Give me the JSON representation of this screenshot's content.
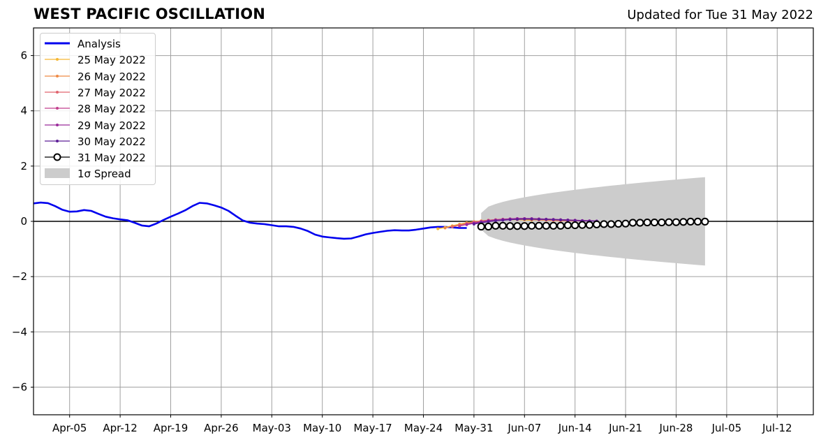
{
  "title": "WEST PACIFIC OSCILLATION",
  "subtitle": "Updated for Tue 31 May 2022",
  "chart_data": {
    "type": "line",
    "x_start": "2022-03-31",
    "x_end": "2022-07-17",
    "ylim": [
      -7,
      7
    ],
    "yticks": [
      -6,
      -4,
      -2,
      0,
      2,
      4,
      6
    ],
    "ytick_labels": [
      "−6",
      "−4",
      "−2",
      "0",
      "2",
      "4",
      "6"
    ],
    "xticks": [
      "2022-04-05",
      "2022-04-12",
      "2022-04-19",
      "2022-04-26",
      "2022-05-03",
      "2022-05-10",
      "2022-05-17",
      "2022-05-24",
      "2022-05-31",
      "2022-06-07",
      "2022-06-14",
      "2022-06-21",
      "2022-06-28",
      "2022-07-05",
      "2022-07-12"
    ],
    "xtick_labels": [
      "Apr-05",
      "Apr-12",
      "Apr-19",
      "Apr-26",
      "May-03",
      "May-10",
      "May-17",
      "May-24",
      "May-31",
      "Jun-07",
      "Jun-14",
      "Jun-21",
      "Jun-28",
      "Jul-05",
      "Jul-12"
    ],
    "grid": true,
    "zero_line": true,
    "legend_position": "upper-left",
    "series": [
      {
        "name": "Analysis",
        "color": "#0000ee",
        "style": "line",
        "x_start": "2022-03-31",
        "values": [
          0.65,
          0.68,
          0.66,
          0.55,
          0.42,
          0.35,
          0.36,
          0.41,
          0.38,
          0.27,
          0.17,
          0.11,
          0.07,
          0.04,
          -0.05,
          -0.15,
          -0.18,
          -0.08,
          0.05,
          0.17,
          0.28,
          0.4,
          0.55,
          0.67,
          0.65,
          0.58,
          0.5,
          0.38,
          0.2,
          0.03,
          -0.05,
          -0.08,
          -0.1,
          -0.14,
          -0.18,
          -0.18,
          -0.2,
          -0.26,
          -0.35,
          -0.48,
          -0.55,
          -0.58,
          -0.61,
          -0.63,
          -0.62,
          -0.55,
          -0.47,
          -0.42,
          -0.38,
          -0.34,
          -0.32,
          -0.33,
          -0.33,
          -0.3,
          -0.26,
          -0.22,
          -0.2,
          -0.2,
          -0.22,
          -0.24,
          -0.24
        ]
      },
      {
        "name": "25 May 2022",
        "color": "#f5b733",
        "style": "dots",
        "x_start": "2022-05-26",
        "values": [
          -0.27,
          -0.22,
          -0.16,
          -0.1,
          -0.05,
          -0.01,
          0.02,
          0.04,
          0.05,
          0.06,
          0.06,
          0.06,
          0.05,
          0.04
        ]
      },
      {
        "name": "26 May 2022",
        "color": "#ef8a44",
        "style": "dots",
        "x_start": "2022-05-27",
        "values": [
          -0.24,
          -0.18,
          -0.12,
          -0.07,
          -0.02,
          0.01,
          0.04,
          0.06,
          0.07,
          0.08,
          0.08,
          0.07,
          0.06,
          0.05,
          0.04,
          0.03,
          0.02,
          0.02,
          0.01
        ]
      },
      {
        "name": "27 May 2022",
        "color": "#e0646e",
        "style": "dots",
        "x_start": "2022-05-28",
        "values": [
          -0.2,
          -0.14,
          -0.08,
          -0.03,
          0.01,
          0.04,
          0.06,
          0.08,
          0.09,
          0.09,
          0.09,
          0.08,
          0.07,
          0.06,
          0.05,
          0.04,
          0.03,
          0.02,
          0.01,
          0.01
        ]
      },
      {
        "name": "28 May 2022",
        "color": "#c23f8d",
        "style": "dots",
        "x_start": "2022-05-29",
        "values": [
          -0.17,
          -0.11,
          -0.05,
          -0.01,
          0.03,
          0.05,
          0.07,
          0.09,
          0.1,
          0.1,
          0.09,
          0.09,
          0.08,
          0.07,
          0.06,
          0.05,
          0.04,
          0.03,
          0.02,
          0.01
        ]
      },
      {
        "name": "29 May 2022",
        "color": "#9a2a9a",
        "style": "dots",
        "x_start": "2022-05-30",
        "values": [
          -0.12,
          -0.07,
          -0.02,
          0.02,
          0.05,
          0.07,
          0.09,
          0.1,
          0.1,
          0.1,
          0.09,
          0.08,
          0.07,
          0.06,
          0.05,
          0.04,
          0.03,
          0.02,
          0.01
        ]
      },
      {
        "name": "30 May 2022",
        "color": "#5c1e96",
        "style": "dots",
        "x_start": "2022-05-31",
        "values": [
          -0.1,
          -0.05,
          -0.01,
          0.02,
          0.04,
          0.06,
          0.07,
          0.08,
          0.08,
          0.07,
          0.07,
          0.06,
          0.05,
          0.04,
          0.03,
          0.02,
          0.01,
          0.01
        ]
      },
      {
        "name": "31 May 2022",
        "color": "#000000",
        "style": "circles",
        "x_start": "2022-06-01",
        "values": [
          -0.19,
          -0.19,
          -0.16,
          -0.16,
          -0.17,
          -0.17,
          -0.17,
          -0.16,
          -0.16,
          -0.16,
          -0.16,
          -0.16,
          -0.14,
          -0.14,
          -0.13,
          -0.13,
          -0.11,
          -0.1,
          -0.1,
          -0.09,
          -0.08,
          -0.05,
          -0.05,
          -0.04,
          -0.04,
          -0.04,
          -0.03,
          -0.03,
          -0.02,
          -0.01,
          -0.01,
          -0.01
        ]
      }
    ],
    "spread": {
      "name": "1σ Spread",
      "color": "#cccccc",
      "x_start": "2022-06-01",
      "x_end": "2022-07-02",
      "center": 0,
      "halfwidth_start": 0.3,
      "halfwidth_end": 1.6
    }
  }
}
